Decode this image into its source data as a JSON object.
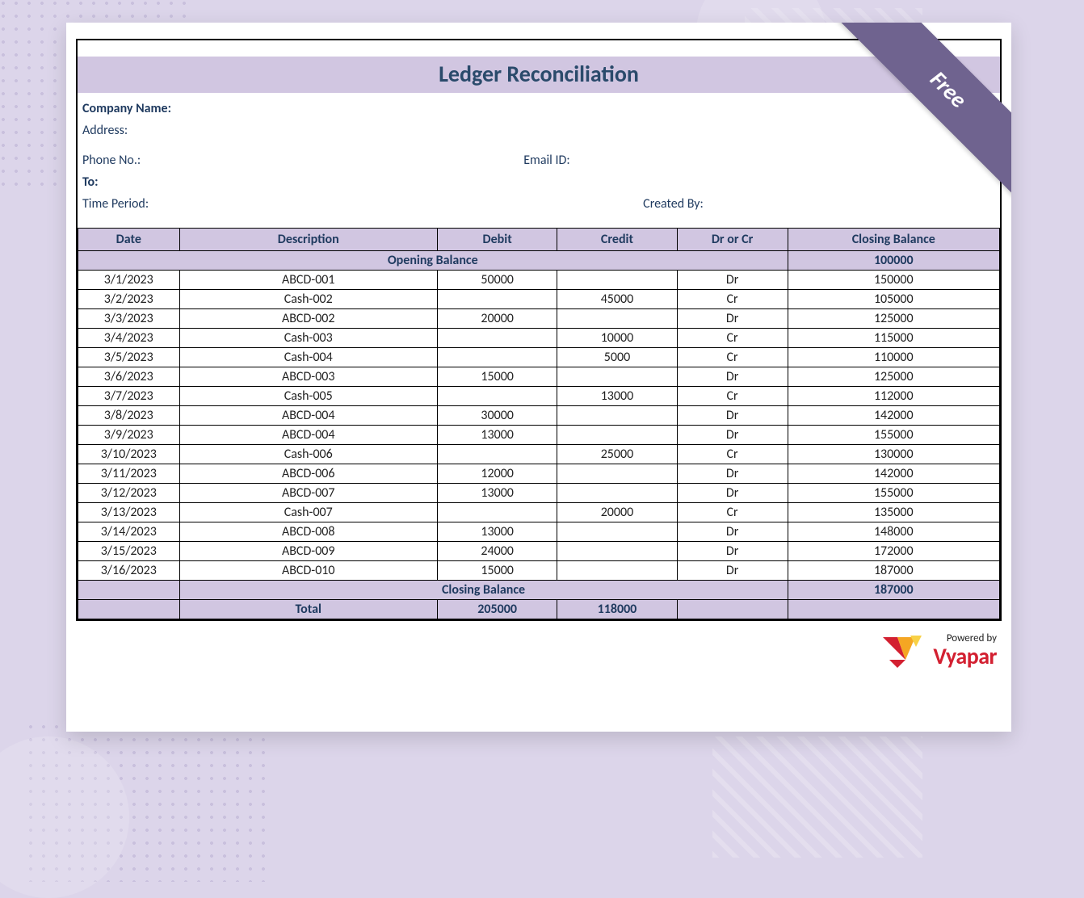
{
  "colors": {
    "page_bg": "#dcd5ea",
    "card_bg": "#ffffff",
    "header_fill": "#d1c6e1",
    "header_text": "#1f3a5f",
    "title_text": "#2a4a6b",
    "border": "#000000",
    "ribbon_bg": "#6f638f",
    "ribbon_text": "#ffffff",
    "brand_red": "#d32031",
    "brand_orange": "#f5a623",
    "brand_yellow": "#f8d146"
  },
  "ribbon": {
    "label": "Free"
  },
  "title": "Ledger Reconciliation",
  "header": {
    "company_label": "Company Name:",
    "address_label": "Address:",
    "phone_label": "Phone No.:",
    "email_label": "Email ID:",
    "to_label": "To:",
    "time_period_label": "Time Period:",
    "created_by_label": "Created By:"
  },
  "table": {
    "columns": [
      {
        "key": "date",
        "label": "Date",
        "width_pct": 11
      },
      {
        "key": "description",
        "label": "Description",
        "width_pct": 28
      },
      {
        "key": "debit",
        "label": "Debit",
        "width_pct": 13
      },
      {
        "key": "credit",
        "label": "Credit",
        "width_pct": 13
      },
      {
        "key": "drcr",
        "label": "Dr or Cr",
        "width_pct": 12
      },
      {
        "key": "closing",
        "label": "Closing Balance",
        "width_pct": 23
      }
    ],
    "opening": {
      "label": "Opening Balance",
      "value": "100000"
    },
    "rows": [
      {
        "date": "3/1/2023",
        "description": "ABCD-001",
        "debit": "50000",
        "credit": "",
        "drcr": "Dr",
        "closing": "150000"
      },
      {
        "date": "3/2/2023",
        "description": "Cash-002",
        "debit": "",
        "credit": "45000",
        "drcr": "Cr",
        "closing": "105000"
      },
      {
        "date": "3/3/2023",
        "description": "ABCD-002",
        "debit": "20000",
        "credit": "",
        "drcr": "Dr",
        "closing": "125000"
      },
      {
        "date": "3/4/2023",
        "description": "Cash-003",
        "debit": "",
        "credit": "10000",
        "drcr": "Cr",
        "closing": "115000"
      },
      {
        "date": "3/5/2023",
        "description": "Cash-004",
        "debit": "",
        "credit": "5000",
        "drcr": "Cr",
        "closing": "110000"
      },
      {
        "date": "3/6/2023",
        "description": "ABCD-003",
        "debit": "15000",
        "credit": "",
        "drcr": "Dr",
        "closing": "125000"
      },
      {
        "date": "3/7/2023",
        "description": "Cash-005",
        "debit": "",
        "credit": "13000",
        "drcr": "Cr",
        "closing": "112000"
      },
      {
        "date": "3/8/2023",
        "description": "ABCD-004",
        "debit": "30000",
        "credit": "",
        "drcr": "Dr",
        "closing": "142000"
      },
      {
        "date": "3/9/2023",
        "description": "ABCD-004",
        "debit": "13000",
        "credit": "",
        "drcr": "Dr",
        "closing": "155000"
      },
      {
        "date": "3/10/2023",
        "description": "Cash-006",
        "debit": "",
        "credit": "25000",
        "drcr": "Cr",
        "closing": "130000"
      },
      {
        "date": "3/11/2023",
        "description": "ABCD-006",
        "debit": "12000",
        "credit": "",
        "drcr": "Dr",
        "closing": "142000"
      },
      {
        "date": "3/12/2023",
        "description": "ABCD-007",
        "debit": "13000",
        "credit": "",
        "drcr": "Dr",
        "closing": "155000"
      },
      {
        "date": "3/13/2023",
        "description": "Cash-007",
        "debit": "",
        "credit": "20000",
        "drcr": "Cr",
        "closing": "135000"
      },
      {
        "date": "3/14/2023",
        "description": "ABCD-008",
        "debit": "13000",
        "credit": "",
        "drcr": "Dr",
        "closing": "148000"
      },
      {
        "date": "3/15/2023",
        "description": "ABCD-009",
        "debit": "24000",
        "credit": "",
        "drcr": "Dr",
        "closing": "172000"
      },
      {
        "date": "3/16/2023",
        "description": "ABCD-010",
        "debit": "15000",
        "credit": "",
        "drcr": "Dr",
        "closing": "187000"
      }
    ],
    "closing": {
      "label": "Closing Balance",
      "value": "187000"
    },
    "total": {
      "label": "Total",
      "debit": "205000",
      "credit": "118000"
    }
  },
  "footer": {
    "powered_by": "Powered by",
    "brand": "Vyapar"
  }
}
